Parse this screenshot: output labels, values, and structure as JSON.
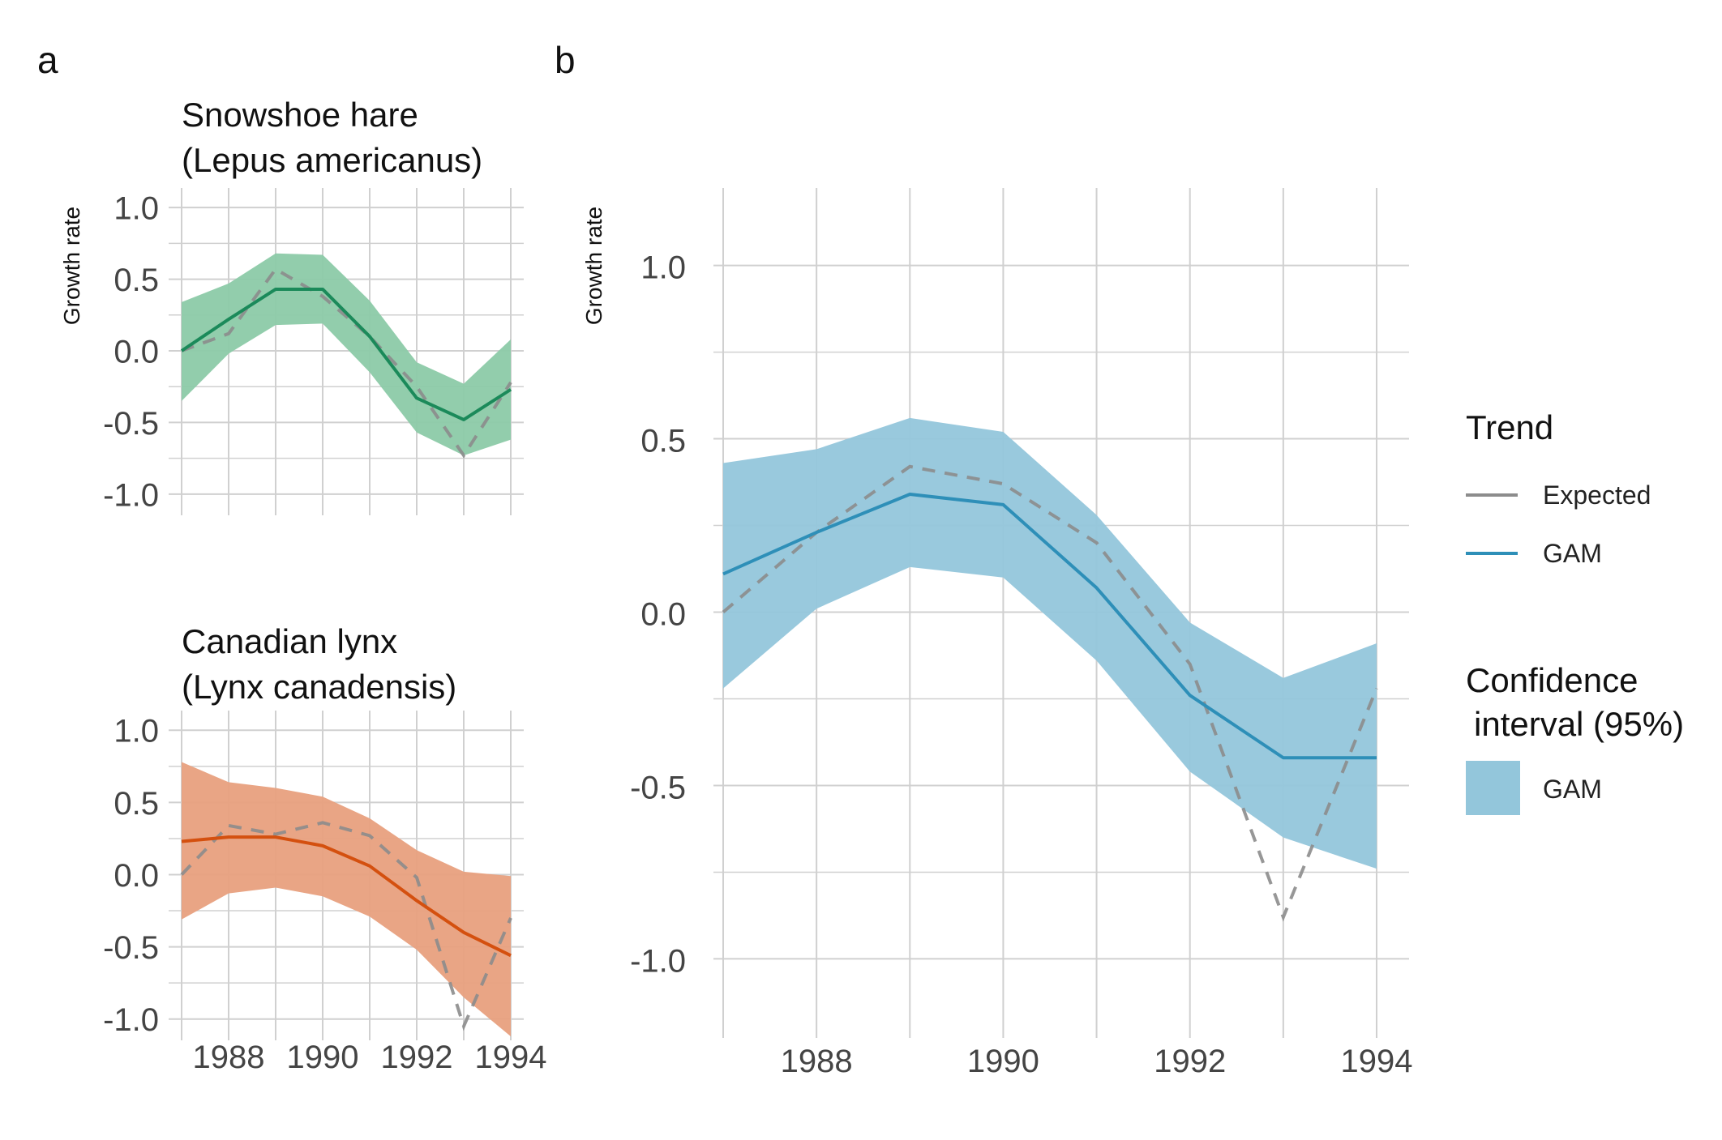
{
  "panel_letters": [
    "a",
    "b"
  ],
  "legend": {
    "trend_title": "Trend",
    "expected_label": "Expected",
    "gam_label": "GAM",
    "ci_title_line1": "Confidence",
    "ci_title_line2": "interval (95%)",
    "ci_label": "GAM"
  },
  "colors": {
    "expected": "#8c8c8c",
    "hare": "#1b8a5a",
    "hare_fill": "#8ccaa8",
    "lynx": "#d4500f",
    "lynx_fill": "#e8a07e",
    "combined": "#2e8fb8",
    "combined_fill": "#93c6db",
    "grid": "#d0d0d0"
  },
  "chart_data": [
    {
      "type": "line",
      "panel": "a",
      "title_line1": "Snowshoe hare",
      "title_line2": "(Lepus americanus)",
      "ylabel": "Growth rate",
      "xlabel": "",
      "x": [
        1987,
        1988,
        1989,
        1990,
        1991,
        1992,
        1993,
        1994
      ],
      "x_ticks": [
        1988,
        1990,
        1992,
        1994
      ],
      "y_ticks": [
        -1.0,
        -0.5,
        0.0,
        0.5,
        1.0
      ],
      "y_tick_labels": [
        "-1.0",
        "-0.5",
        "0.0",
        "0.5",
        "1.0"
      ],
      "ylim": [
        -1.08,
        1.08
      ],
      "show_x_labels": false,
      "series": [
        {
          "name": "Expected",
          "values": [
            0.0,
            0.12,
            0.57,
            0.38,
            0.1,
            -0.25,
            -0.73,
            -0.22
          ]
        },
        {
          "name": "GAM",
          "values": [
            0.0,
            0.22,
            0.43,
            0.43,
            0.1,
            -0.33,
            -0.48,
            -0.27
          ]
        }
      ],
      "ci_lower": [
        -0.35,
        -0.02,
        0.18,
        0.19,
        -0.15,
        -0.57,
        -0.73,
        -0.62
      ],
      "ci_upper": [
        0.34,
        0.47,
        0.68,
        0.67,
        0.35,
        -0.08,
        -0.23,
        0.08
      ]
    },
    {
      "type": "line",
      "panel": "a",
      "title_line1": "Canadian lynx",
      "title_line2": "(Lynx canadensis)",
      "ylabel": "",
      "xlabel": "",
      "x": [
        1987,
        1988,
        1989,
        1990,
        1991,
        1992,
        1993,
        1994
      ],
      "x_ticks": [
        1988,
        1990,
        1992,
        1994
      ],
      "x_tick_labels": [
        "1988",
        "1990",
        "1992",
        "1994"
      ],
      "y_ticks": [
        -1.0,
        -0.5,
        0.0,
        0.5,
        1.0
      ],
      "y_tick_labels": [
        "-1.0",
        "-0.5",
        "0.0",
        "0.5",
        "1.0"
      ],
      "ylim": [
        -1.08,
        1.08
      ],
      "show_x_labels": true,
      "series": [
        {
          "name": "Expected",
          "values": [
            0.0,
            0.34,
            0.28,
            0.36,
            0.27,
            -0.02,
            -1.05,
            -0.3
          ]
        },
        {
          "name": "GAM",
          "values": [
            0.23,
            0.26,
            0.26,
            0.2,
            0.06,
            -0.18,
            -0.4,
            -0.56
          ]
        }
      ],
      "ci_lower": [
        -0.31,
        -0.13,
        -0.09,
        -0.15,
        -0.29,
        -0.52,
        -0.85,
        -1.12
      ],
      "ci_upper": [
        0.78,
        0.64,
        0.6,
        0.54,
        0.39,
        0.17,
        0.02,
        -0.01
      ]
    },
    {
      "type": "line",
      "panel": "b",
      "ylabel": "Growth rate",
      "xlabel": "",
      "x": [
        1987,
        1988,
        1989,
        1990,
        1991,
        1992,
        1993,
        1994
      ],
      "x_ticks": [
        1988,
        1990,
        1992,
        1994
      ],
      "x_tick_labels": [
        "1988",
        "1990",
        "1992",
        "1994"
      ],
      "y_ticks": [
        -1.0,
        -0.5,
        0.0,
        0.5,
        1.0
      ],
      "y_tick_labels": [
        "-1.0",
        "-0.5",
        "0.0",
        "0.5",
        "1.0"
      ],
      "ylim": [
        -1.2,
        1.2
      ],
      "show_x_labels": true,
      "series": [
        {
          "name": "Expected",
          "values": [
            0.0,
            0.23,
            0.42,
            0.37,
            0.2,
            -0.15,
            -0.88,
            -0.22
          ]
        },
        {
          "name": "GAM",
          "values": [
            0.11,
            0.23,
            0.34,
            0.31,
            0.07,
            -0.24,
            -0.42,
            -0.42
          ]
        }
      ],
      "ci_lower": [
        -0.22,
        0.01,
        0.13,
        0.1,
        -0.14,
        -0.46,
        -0.65,
        -0.74
      ],
      "ci_upper": [
        0.43,
        0.47,
        0.56,
        0.52,
        0.28,
        -0.03,
        -0.19,
        -0.09
      ]
    }
  ]
}
